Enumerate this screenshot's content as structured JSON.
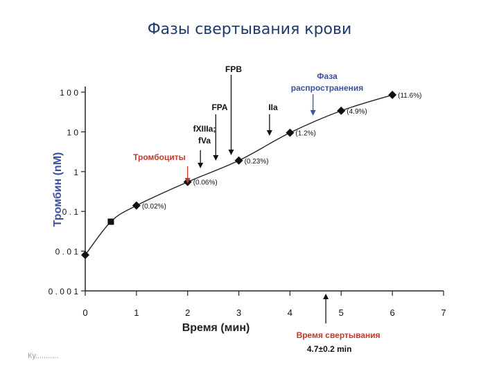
{
  "title": "Фазы свертывания крови",
  "footer": "Ку...........",
  "chart_data": {
    "type": "scatter",
    "xlabel": "Время (мин)",
    "ylabel": "Тромбин (nM)",
    "x_ticks": [
      "0",
      "1",
      "2",
      "3",
      "4",
      "5",
      "6",
      "7"
    ],
    "y_ticks": [
      "0.001",
      "0.01",
      "0.1",
      "1",
      "10",
      "100"
    ],
    "xlim": [
      0,
      7
    ],
    "ylim": [
      0.001,
      100
    ],
    "yscale": "log",
    "grid": false,
    "points": [
      {
        "x": 0,
        "y": 0.008,
        "marker": "diamond",
        "label": ""
      },
      {
        "x": 0.5,
        "y": 0.055,
        "marker": "square",
        "label": ""
      },
      {
        "x": 1,
        "y": 0.14,
        "marker": "diamond",
        "label": "(0.02%)"
      },
      {
        "x": 2,
        "y": 0.55,
        "marker": "diamond",
        "label": "(0.06%)"
      },
      {
        "x": 3,
        "y": 1.9,
        "marker": "diamond",
        "label": "(0.23%)"
      },
      {
        "x": 4,
        "y": 9.5,
        "marker": "diamond",
        "label": "(1.2%)"
      },
      {
        "x": 5,
        "y": 34,
        "marker": "diamond",
        "label": "(4.9%)"
      },
      {
        "x": 6,
        "y": 85,
        "marker": "diamond",
        "label": "(11.6%)"
      }
    ],
    "annotations": [
      {
        "lines": [
          "Тромбоциты"
        ],
        "color": "#c0392b",
        "arrow_x": 2.0,
        "arrow_top": 0.75,
        "arrow_bottom": 0.95,
        "text_y": 0.4
      },
      {
        "lines": [
          "fXIIIa;",
          "fVa"
        ],
        "color": "#111111",
        "arrow_x": 2.25,
        "arrow_top": 0.45,
        "arrow_bottom": 0.7,
        "text_y": 0.05
      },
      {
        "lines": [
          "FPA"
        ],
        "color": "#111111",
        "arrow_x": 2.55,
        "arrow_top": 0.7,
        "arrow_bottom": 0.3,
        "text_y": 0.6
      },
      {
        "lines": [
          "FPB"
        ],
        "color": "#111111",
        "arrow_x": 2.85,
        "arrow_top": 0.8,
        "arrow_bottom": 0.55,
        "text_y": 0.4
      },
      {
        "lines": [
          "IIa"
        ],
        "color": "#111111",
        "arrow_x": 3.6,
        "arrow_top": 0.5,
        "arrow_bottom": 0.55,
        "text_y": 0.6
      },
      {
        "lines": [
          "Фаза",
          "распространения"
        ],
        "color": "#3d4f9e",
        "arrow_x": 4.45,
        "arrow_top": 0.4,
        "arrow_bottom": 0.55,
        "text_y": 0.85
      }
    ],
    "clotting_time": {
      "x": 4.7,
      "label": "Время свертывания",
      "value": "4.7±0.2 min"
    }
  }
}
